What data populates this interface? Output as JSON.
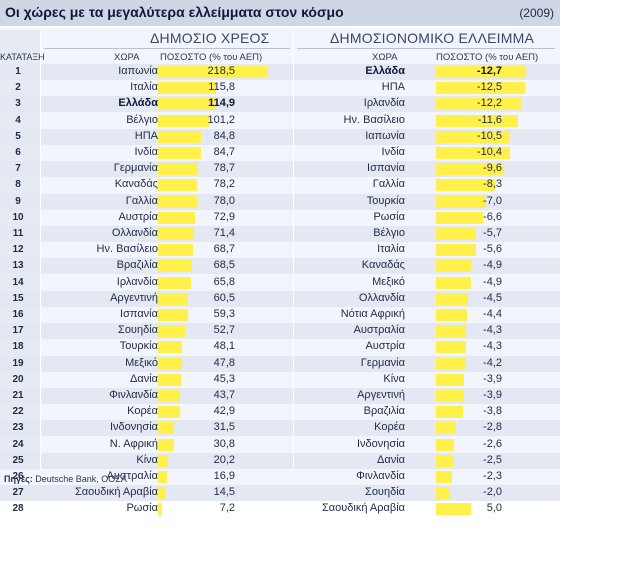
{
  "header": {
    "title": "Οι χώρες με τα μεγαλύτερα ελλείμματα στον κόσμο",
    "year": "(2009)"
  },
  "sections": {
    "debt_title": "ΔΗΜΟΣΙΟ ΧΡΕΟΣ",
    "deficit_title": "ΔΗΜΟΣΙΟΝΟΜΙΚΟ ΕΛΛΕΙΜΜΑ"
  },
  "columns": {
    "rank": "ΚΑΤΑΤΑΞΗ",
    "country": "ΧΩΡΑ",
    "percent": "ΠΟΣΟΣΤΟ (% του ΑΕΠ)"
  },
  "source": {
    "label": "Πηγές:",
    "text": " Deutsche Bank, ΟΟΣΑ"
  },
  "colors": {
    "bar": "#fff04a",
    "header_bg": "#cfd6e6",
    "panel_bg": "#f2f5fb"
  },
  "chart_data": [
    {
      "type": "bar",
      "title": "ΔΗΜΟΣΙΟ ΧΡΕΟΣ",
      "ylabel": "ΠΟΣΟΣΤΟ (% του ΑΕΠ)",
      "categories": [
        "Ιαπωνία",
        "Ιταλία",
        "Ελλάδα",
        "Βέλγιο",
        "ΗΠΑ",
        "Ινδία",
        "Γερμανία",
        "Καναδάς",
        "Γαλλία",
        "Αυστρία",
        "Ολλανδία",
        "Ην. Βασίλειο",
        "Βραζιλία",
        "Ιρλανδία",
        "Αργεντινή",
        "Ισπανία",
        "Σουηδία",
        "Τουρκία",
        "Μεξικό",
        "Δανία",
        "Φινλανδία",
        "Κορέα",
        "Ινδονησία",
        "Ν. Αφρική",
        "Κίνα",
        "Αυστραλία",
        "Σαουδική Αραβία",
        "Ρωσία"
      ],
      "values": [
        218.5,
        115.8,
        114.9,
        101.2,
        84.8,
        84.7,
        78.7,
        78.2,
        78.0,
        72.9,
        71.4,
        68.7,
        68.5,
        65.8,
        60.5,
        59.3,
        52.7,
        48.1,
        47.8,
        45.3,
        43.7,
        42.9,
        31.5,
        30.8,
        20.2,
        16.9,
        14.5,
        7.2
      ],
      "labels": [
        "218,5",
        "115,8",
        "114,9",
        "101,2",
        "84,8",
        "84,7",
        "78,7",
        "78,2",
        "78,0",
        "72,9",
        "71,4",
        "68,7",
        "68,5",
        "65,8",
        "60,5",
        "59,3",
        "52,7",
        "48,1",
        "47,8",
        "45,3",
        "43,7",
        "42,9",
        "31,5",
        "30,8",
        "20,2",
        "16,9",
        "14,5",
        "7,2"
      ],
      "highlight": "Ελλάδα"
    },
    {
      "type": "bar",
      "title": "ΔΗΜΟΣΙΟΝΟΜΙΚΟ ΕΛΛΕΙΜΜΑ",
      "ylabel": "ΠΟΣΟΣΤΟ (% του ΑΕΠ)",
      "categories": [
        "Ελλάδα",
        "ΗΠΑ",
        "Ιρλανδία",
        "Ην. Βασίλειο",
        "Ιαπωνία",
        "Ινδία",
        "Ισπανία",
        "Γαλλία",
        "Τουρκία",
        "Ρωσία",
        "Βέλγιο",
        "Ιταλία",
        "Καναδάς",
        "Μεξικό",
        "Ολλανδία",
        "Νότια Αφρική",
        "Αυστραλία",
        "Αυστρία",
        "Γερμανία",
        "Κίνα",
        "Αργεντινή",
        "Βραζιλία",
        "Κορέα",
        "Ινδονησία",
        "Δανία",
        "Φινλανδία",
        "Σουηδία",
        "Σαουδική Αραβία"
      ],
      "values": [
        -12.7,
        -12.5,
        -12.2,
        -11.6,
        -10.5,
        -10.4,
        -9.6,
        -8.3,
        -7.0,
        -6.6,
        -5.7,
        -5.6,
        -4.9,
        -4.9,
        -4.5,
        -4.4,
        -4.3,
        -4.3,
        -4.2,
        -3.9,
        -3.9,
        -3.8,
        -2.8,
        -2.6,
        -2.5,
        -2.3,
        -2.0,
        5.0
      ],
      "labels": [
        "-12,7",
        "-12,5",
        "-12,2",
        "-11,6",
        "-10,5",
        "-10,4",
        "-9,6",
        "-8,3",
        "-7,0",
        "-6,6",
        "-5,7",
        "-5,6",
        "-4,9",
        "-4,9",
        "-4,5",
        "-4,4",
        "-4,3",
        "-4,3",
        "-4,2",
        "-3,9",
        "-3,9",
        "-3,8",
        "-2,8",
        "-2,6",
        "-2,5",
        "-2,3",
        "-2,0",
        "5,0"
      ],
      "highlight": "Ελλάδα"
    }
  ],
  "ranks": [
    "1",
    "2",
    "3",
    "4",
    "5",
    "6",
    "7",
    "8",
    "9",
    "10",
    "11",
    "12",
    "13",
    "14",
    "15",
    "16",
    "17",
    "18",
    "19",
    "20",
    "21",
    "22",
    "23",
    "24",
    "25",
    "26",
    "27",
    "28"
  ]
}
